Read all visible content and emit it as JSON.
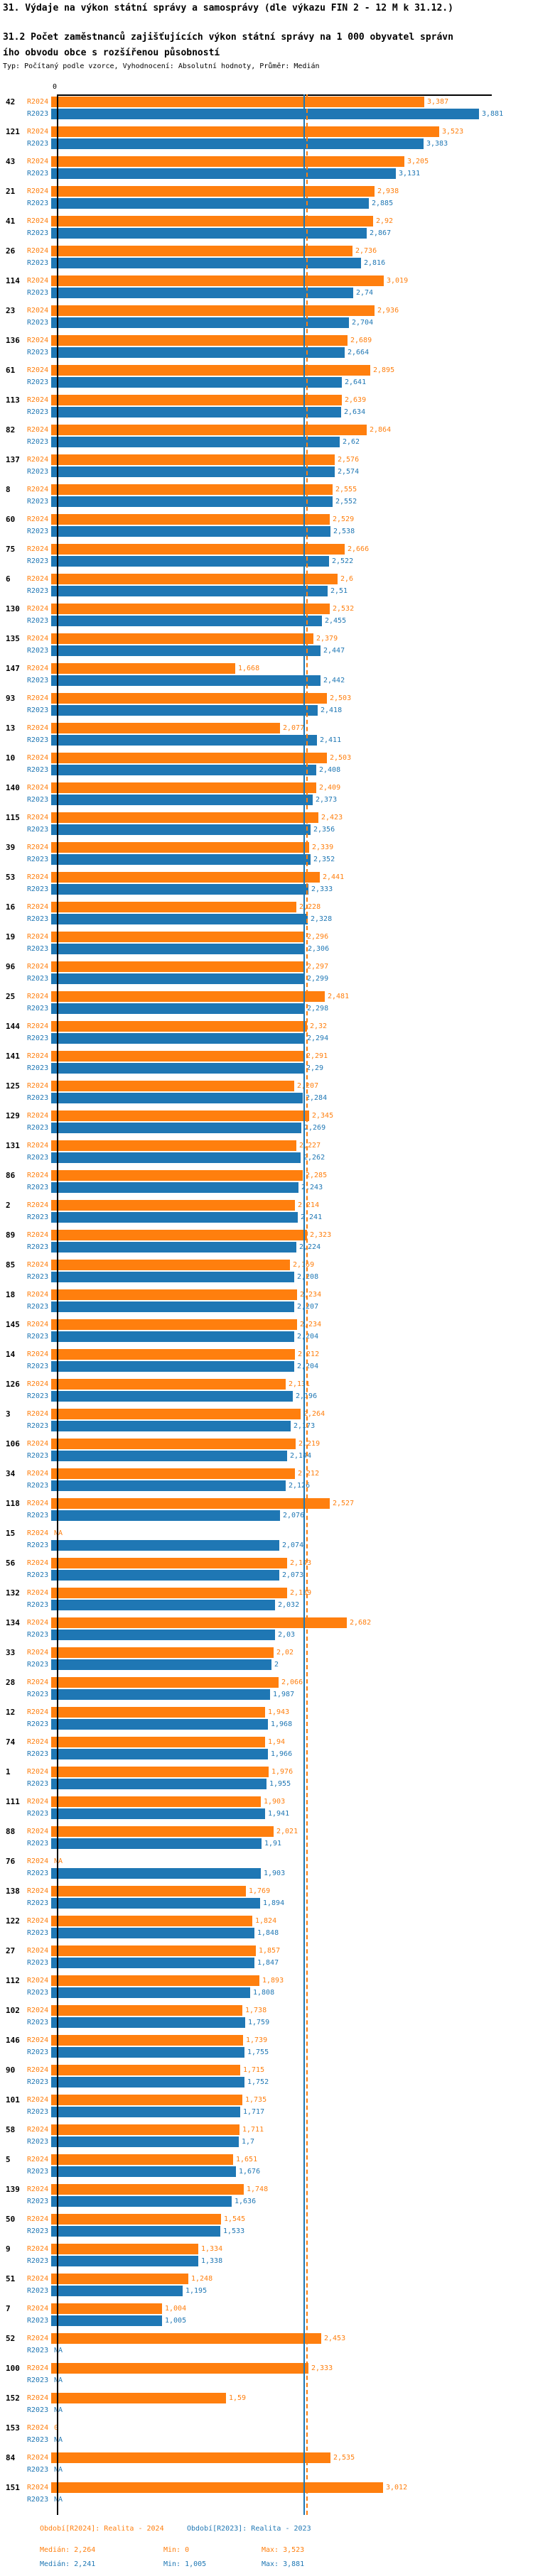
{
  "header": {
    "title": "31. Výdaje na výkon státní správy a samosprávy (dle výkazu FIN 2 - 12 M k 31.12.)",
    "subtitle": "31.2 Počet zaměstnanců zajišťujících výkon státní správy na 1 000 obyvatel správního obvodu obce s rozšířenou působností",
    "meta": "Typ: Počítaný podle vzorce, Vyhodnocení: Absolutní hodnoty, Průměr: Medián"
  },
  "axis": {
    "zero_label": "0"
  },
  "colors": {
    "r2024": "#FF7F0E",
    "r2023": "#1F77B4"
  },
  "footer": {
    "legend_r2024": "Období[R2024]: Realita - 2024",
    "legend_r2023": "Období[R2023]: Realita - 2023",
    "median_r2024": "Medián: 2,264",
    "min_r2024": "Min: 0",
    "max_r2024": "Max: 3,523",
    "median_r2023": "Medián: 2,241",
    "min_r2023": "Min: 1,005",
    "max_r2023": "Max: 3,881"
  },
  "chart_data": {
    "type": "bar",
    "orientation": "horizontal",
    "series_names": [
      "R2024",
      "R2023"
    ],
    "na_text": "NA",
    "xlim": [
      0,
      3.95
    ],
    "grid": false,
    "medians": {
      "R2024": 2.264,
      "R2023": 2.241
    },
    "stats": {
      "R2024": {
        "median": 2.264,
        "min": 0,
        "max": 3.523
      },
      "R2023": {
        "median": 2.241,
        "min": 1.005,
        "max": 3.881
      }
    },
    "rows": [
      [
        "42",
        3.387,
        3.881
      ],
      [
        "121",
        3.523,
        3.383
      ],
      [
        "43",
        3.205,
        3.131
      ],
      [
        "21",
        2.938,
        2.885
      ],
      [
        "41",
        2.92,
        2.867
      ],
      [
        "26",
        2.736,
        2.816
      ],
      [
        "114",
        3.019,
        2.74
      ],
      [
        "23",
        2.936,
        2.704
      ],
      [
        "136",
        2.689,
        2.664
      ],
      [
        "61",
        2.895,
        2.641
      ],
      [
        "113",
        2.639,
        2.634
      ],
      [
        "82",
        2.864,
        2.62
      ],
      [
        "137",
        2.576,
        2.574
      ],
      [
        "8",
        2.555,
        2.552
      ],
      [
        "60",
        2.529,
        2.538
      ],
      [
        "75",
        2.666,
        2.522
      ],
      [
        "6",
        2.6,
        2.51
      ],
      [
        "130",
        2.532,
        2.455
      ],
      [
        "135",
        2.379,
        2.447
      ],
      [
        "147",
        1.668,
        2.442
      ],
      [
        "93",
        2.503,
        2.418
      ],
      [
        "13",
        2.077,
        2.411
      ],
      [
        "10",
        2.503,
        2.408
      ],
      [
        "140",
        2.409,
        2.373
      ],
      [
        "115",
        2.423,
        2.356
      ],
      [
        "39",
        2.339,
        2.352
      ],
      [
        "53",
        2.441,
        2.333
      ],
      [
        "16",
        2.228,
        2.328
      ],
      [
        "19",
        2.296,
        2.306
      ],
      [
        "96",
        2.297,
        2.299
      ],
      [
        "25",
        2.481,
        2.298
      ],
      [
        "144",
        2.32,
        2.294
      ],
      [
        "141",
        2.291,
        2.29
      ],
      [
        "125",
        2.207,
        2.284
      ],
      [
        "129",
        2.345,
        2.269
      ],
      [
        "131",
        2.227,
        2.262
      ],
      [
        "86",
        2.285,
        2.243
      ],
      [
        "2",
        2.214,
        2.241
      ],
      [
        "89",
        2.323,
        2.224
      ],
      [
        "85",
        2.169,
        2.208
      ],
      [
        "18",
        2.234,
        2.207
      ],
      [
        "145",
        2.234,
        2.204
      ],
      [
        "14",
        2.212,
        2.204
      ],
      [
        "126",
        2.131,
        2.196
      ],
      [
        "3",
        2.264,
        2.173
      ],
      [
        "106",
        2.219,
        2.144
      ],
      [
        "34",
        2.212,
        2.126
      ],
      [
        "118",
        2.527,
        2.076
      ],
      [
        "15",
        null,
        2.074
      ],
      [
        "56",
        2.143,
        2.073
      ],
      [
        "132",
        2.139,
        2.032
      ],
      [
        "134",
        2.682,
        2.03
      ],
      [
        "33",
        2.02,
        2
      ],
      [
        "28",
        2.066,
        1.987
      ],
      [
        "12",
        1.943,
        1.968
      ],
      [
        "74",
        1.94,
        1.966
      ],
      [
        "1",
        1.976,
        1.955
      ],
      [
        "111",
        1.903,
        1.941
      ],
      [
        "88",
        2.021,
        1.91
      ],
      [
        "76",
        null,
        1.903
      ],
      [
        "138",
        1.769,
        1.894
      ],
      [
        "122",
        1.824,
        1.848
      ],
      [
        "27",
        1.857,
        1.847
      ],
      [
        "112",
        1.893,
        1.808
      ],
      [
        "102",
        1.738,
        1.759
      ],
      [
        "146",
        1.739,
        1.755
      ],
      [
        "90",
        1.715,
        1.752
      ],
      [
        "101",
        1.735,
        1.717
      ],
      [
        "58",
        1.711,
        1.7
      ],
      [
        "5",
        1.651,
        1.676
      ],
      [
        "139",
        1.748,
        1.636
      ],
      [
        "50",
        1.545,
        1.533
      ],
      [
        "9",
        1.334,
        1.338
      ],
      [
        "51",
        1.248,
        1.195
      ],
      [
        "7",
        1.004,
        1.005
      ],
      [
        "52",
        2.453,
        null
      ],
      [
        "100",
        2.333,
        null
      ],
      [
        "152",
        1.59,
        null
      ],
      [
        "153",
        0,
        null
      ],
      [
        "84",
        2.535,
        null
      ],
      [
        "151",
        3.012,
        null
      ]
    ]
  }
}
